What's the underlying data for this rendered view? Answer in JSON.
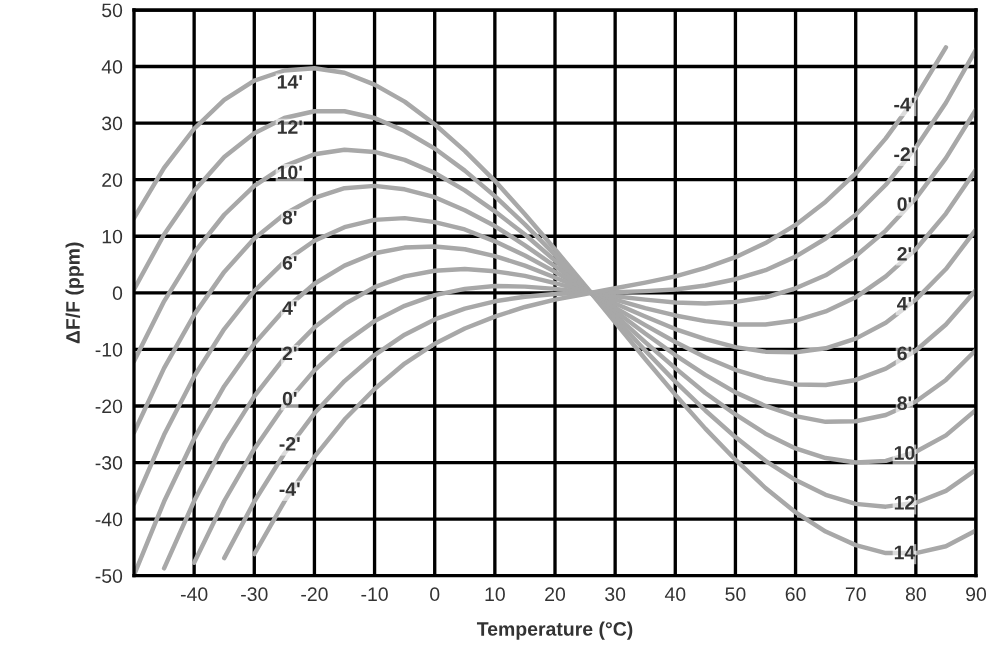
{
  "chart_data": {
    "type": "line",
    "xlabel": "Temperature (°C)",
    "ylabel": "ΔF/F (ppm)",
    "x": [
      -50,
      -45,
      -40,
      -35,
      -30,
      -25,
      -20,
      -15,
      -10,
      -5,
      0,
      5,
      10,
      15,
      20,
      25,
      30,
      35,
      40,
      45,
      50,
      55,
      60,
      65,
      70,
      75,
      80,
      85,
      90
    ],
    "series": [
      {
        "color": "#a8a8a8",
        "values": [
          13.2,
          22.1,
          29.0,
          34.1,
          37.5,
          39.3,
          39.7,
          38.9,
          36.8,
          33.8,
          29.8,
          25.1,
          19.8,
          13.9,
          7.7,
          1.3,
          -5.2,
          -11.7,
          -18.0,
          -24.0,
          -29.5,
          -34.5,
          -38.8,
          -42.2,
          -44.6,
          -46.0,
          -46.0,
          -44.8,
          -42.0
        ]
      },
      {
        "color": "#a8a8a8",
        "values": [
          0.6,
          10.3,
          18.0,
          24.0,
          28.2,
          30.9,
          32.1,
          32.1,
          30.9,
          28.6,
          25.5,
          21.6,
          17.1,
          12.1,
          6.7,
          1.1,
          -4.5,
          -10.2,
          -15.7,
          -20.8,
          -25.5,
          -29.7,
          -33.1,
          -35.7,
          -37.3,
          -37.8,
          -37.1,
          -35.0,
          -31.3
        ]
      },
      {
        "color": "#a8a8a8",
        "values": [
          -12.1,
          -1.5,
          7.1,
          13.8,
          18.9,
          22.4,
          24.5,
          25.3,
          24.9,
          23.5,
          21.2,
          18.1,
          14.4,
          10.3,
          5.7,
          1.0,
          -3.9,
          -8.7,
          -13.3,
          -17.7,
          -21.5,
          -24.9,
          -27.5,
          -29.2,
          -30.0,
          -29.7,
          -28.1,
          -25.2,
          -20.7
        ]
      },
      {
        "color": "#a8a8a8",
        "values": [
          -24.7,
          -13.3,
          -3.9,
          3.7,
          9.6,
          13.9,
          16.8,
          18.5,
          18.9,
          18.3,
          16.9,
          14.6,
          11.8,
          8.4,
          4.7,
          0.8,
          -3.2,
          -7.2,
          -11.0,
          -14.5,
          -17.6,
          -20.0,
          -21.8,
          -22.8,
          -22.7,
          -21.6,
          -19.2,
          -15.4,
          -10.1
        ]
      },
      {
        "color": "#a8a8a8",
        "values": [
          -37.3,
          -25.1,
          -14.8,
          -6.4,
          0.3,
          5.5,
          9.2,
          11.6,
          12.9,
          13.2,
          12.5,
          11.2,
          9.1,
          6.6,
          3.7,
          0.6,
          -2.6,
          -5.7,
          -8.7,
          -11.4,
          -13.6,
          -15.2,
          -16.2,
          -16.3,
          -15.4,
          -13.4,
          -10.2,
          -5.6,
          0.5
        ]
      },
      {
        "color": "#a8a8a8",
        "values": [
          -49.9,
          -36.9,
          -25.8,
          -16.5,
          -9.0,
          -3.0,
          1.6,
          4.8,
          7.0,
          8.0,
          8.2,
          7.7,
          6.5,
          4.8,
          2.7,
          0.5,
          -1.9,
          -4.2,
          -6.4,
          -8.2,
          -9.6,
          -10.4,
          -10.5,
          -9.8,
          -8.1,
          -5.3,
          -1.2,
          4.2,
          11.2
        ]
      },
      {
        "color": "#a8a8a8",
        "values": [
          null,
          -48.7,
          -36.8,
          -26.7,
          -18.3,
          -11.5,
          -6.1,
          -2.0,
          1.0,
          2.9,
          3.9,
          4.2,
          3.8,
          3.0,
          1.7,
          0.3,
          -1.2,
          -2.7,
          -4.0,
          -5.0,
          -5.6,
          -5.6,
          -4.9,
          -3.3,
          -0.8,
          2.9,
          7.7,
          14.0,
          21.8
        ]
      },
      {
        "color": "#a8a8a8",
        "values": [
          null,
          null,
          -47.7,
          -36.8,
          -27.6,
          -19.9,
          -13.7,
          -8.8,
          -5.0,
          -2.3,
          -0.4,
          0.7,
          1.2,
          1.1,
          0.7,
          0.1,
          -0.6,
          -1.2,
          -1.7,
          -1.9,
          -1.6,
          -0.8,
          0.8,
          3.1,
          6.5,
          11.0,
          16.7,
          23.8,
          32.4
        ]
      },
      {
        "color": "#a8a8a8",
        "values": [
          null,
          null,
          null,
          -46.9,
          -36.9,
          -28.4,
          -21.3,
          -15.6,
          -11.0,
          -7.4,
          -4.7,
          -2.8,
          -1.5,
          -0.7,
          -0.2,
          0.0,
          0.1,
          0.3,
          0.6,
          1.3,
          2.4,
          4.0,
          6.4,
          9.6,
          13.8,
          19.1,
          25.7,
          33.6,
          43.0
        ]
      },
      {
        "color": "#a8a8a8",
        "values": [
          null,
          null,
          null,
          null,
          -46.2,
          -36.9,
          -29.0,
          -22.4,
          -17.0,
          -12.5,
          -9.0,
          -6.3,
          -4.2,
          -2.5,
          -1.2,
          -0.2,
          0.8,
          1.8,
          2.9,
          4.4,
          6.3,
          8.8,
          12.0,
          16.1,
          21.1,
          27.3,
          34.6,
          43.4,
          null
        ]
      }
    ],
    "xlim": [
      -50,
      90
    ],
    "xticks": [
      -40,
      -30,
      -20,
      -10,
      0,
      10,
      20,
      30,
      40,
      50,
      60,
      70,
      80,
      90
    ],
    "ylim": [
      -50,
      50
    ],
    "yticks": [
      -50,
      -40,
      -30,
      -20,
      -10,
      0,
      10,
      20,
      30,
      40,
      50
    ],
    "grid": true,
    "annotations": [
      "14'",
      "12'",
      "10'",
      "8'",
      "6'",
      "4'",
      "2'",
      "0'",
      "-2'",
      "-4'",
      "-4'",
      "-2'",
      "0'",
      "2'",
      "4'",
      "6'",
      "8'",
      "10",
      "12",
      "14"
    ]
  }
}
